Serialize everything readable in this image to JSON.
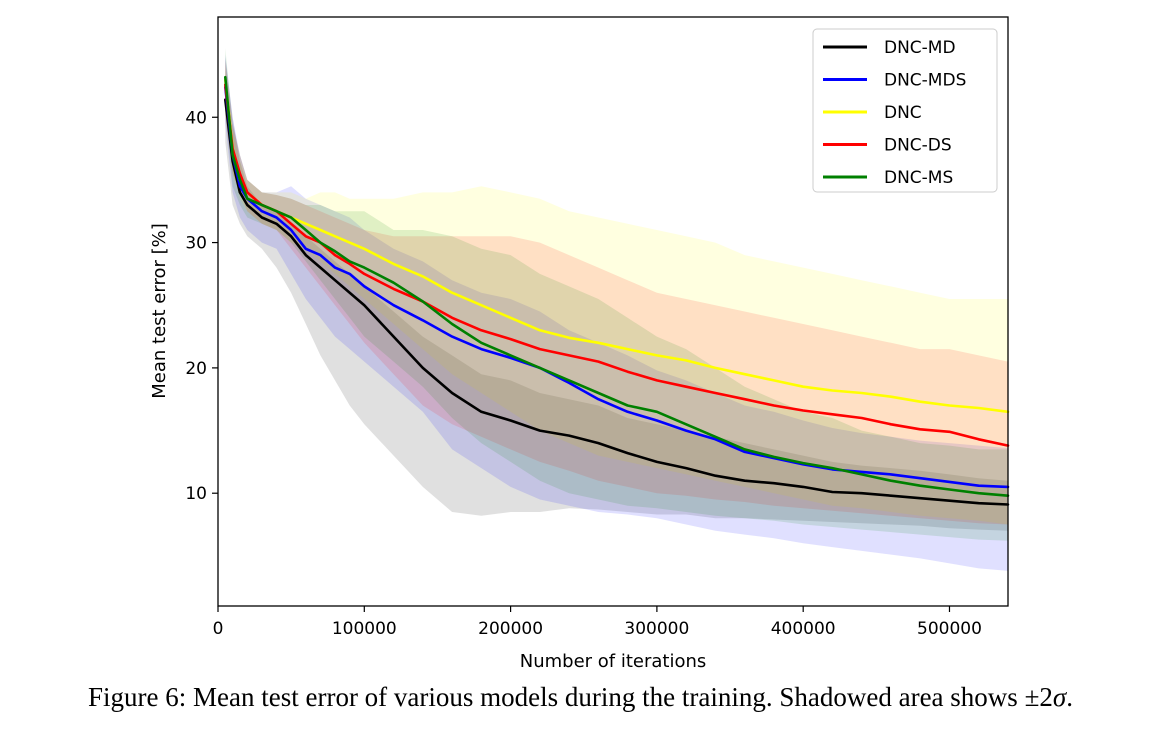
{
  "chart_data": {
    "type": "line",
    "title": "",
    "xlabel": "Number of iterations",
    "ylabel": "Mean test error [%]",
    "xlim": [
      0,
      540000
    ],
    "ylim": [
      1,
      48
    ],
    "xticks": [
      0,
      100000,
      200000,
      300000,
      400000,
      500000
    ],
    "xtick_labels": [
      "0",
      "100000",
      "200000",
      "300000",
      "400000",
      "500000"
    ],
    "yticks": [
      10,
      20,
      30,
      40
    ],
    "ytick_labels": [
      "10",
      "20",
      "30",
      "40"
    ],
    "grid": false,
    "legend_position": "top-right",
    "x": [
      5000,
      10000,
      15000,
      20000,
      30000,
      40000,
      50000,
      60000,
      70000,
      80000,
      90000,
      100000,
      120000,
      140000,
      160000,
      180000,
      200000,
      220000,
      240000,
      260000,
      280000,
      300000,
      320000,
      340000,
      360000,
      380000,
      400000,
      420000,
      440000,
      460000,
      480000,
      500000,
      520000,
      540000
    ],
    "series": [
      {
        "name": "DNC-MD",
        "color": "#000000",
        "values": [
          41.4,
          36.5,
          34.0,
          33.0,
          32.0,
          31.5,
          30.5,
          29.0,
          28.0,
          27.0,
          26.0,
          25.0,
          22.5,
          20.0,
          18.0,
          16.5,
          15.8,
          15.0,
          14.6,
          14.0,
          13.2,
          12.5,
          12.0,
          11.4,
          11.0,
          10.8,
          10.5,
          10.1,
          10.0,
          9.8,
          9.6,
          9.4,
          9.2,
          9.1
        ],
        "upper": [
          44.8,
          40.0,
          36.5,
          34.5,
          33.0,
          32.5,
          31.5,
          30.5,
          29.5,
          28.5,
          27.5,
          26.5,
          24.5,
          22.5,
          21.0,
          19.5,
          19.0,
          18.0,
          17.5,
          17.0,
          16.0,
          15.5,
          15.0,
          14.5,
          14.0,
          13.5,
          13.0,
          12.5,
          12.2,
          12.0,
          11.8,
          11.5,
          11.2,
          11.0
        ],
        "lower": [
          38.0,
          33.0,
          31.5,
          30.5,
          29.5,
          28.0,
          26.0,
          23.5,
          21.0,
          19.0,
          17.0,
          15.5,
          13.0,
          10.5,
          8.5,
          8.2,
          8.5,
          8.5,
          8.8,
          8.7,
          8.5,
          8.3,
          8.3,
          8.0,
          8.0,
          7.9,
          7.8,
          7.7,
          7.6,
          7.5,
          7.4,
          7.2,
          7.1,
          7.0
        ]
      },
      {
        "name": "DNC-MDS",
        "color": "#0000ff",
        "values": [
          42.4,
          37.0,
          34.5,
          33.5,
          32.5,
          32.0,
          31.0,
          29.5,
          29.0,
          28.0,
          27.5,
          26.5,
          25.0,
          23.8,
          22.5,
          21.5,
          20.8,
          20.0,
          18.8,
          17.5,
          16.5,
          15.8,
          15.0,
          14.3,
          13.3,
          12.8,
          12.3,
          11.9,
          11.7,
          11.5,
          11.2,
          10.9,
          10.6,
          10.5
        ],
        "upper": [
          45.0,
          40.0,
          37.0,
          35.0,
          34.0,
          34.0,
          34.5,
          33.5,
          33.0,
          32.5,
          32.0,
          31.0,
          29.5,
          28.5,
          27.0,
          26.0,
          25.5,
          24.5,
          23.0,
          22.0,
          21.0,
          19.8,
          19.0,
          18.0,
          17.0,
          16.5,
          15.8,
          15.2,
          14.8,
          14.5,
          14.2,
          14.0,
          13.8,
          13.6
        ],
        "lower": [
          39.5,
          34.0,
          32.0,
          31.0,
          30.0,
          29.5,
          27.5,
          25.5,
          24.0,
          22.5,
          21.5,
          20.5,
          18.5,
          16.5,
          13.5,
          12.0,
          10.5,
          9.5,
          9.0,
          8.5,
          8.3,
          8.0,
          7.5,
          7.0,
          6.7,
          6.4,
          6.0,
          5.7,
          5.4,
          5.1,
          4.8,
          4.4,
          4.0,
          3.8
        ]
      },
      {
        "name": "DNC",
        "color": "#ffff00",
        "values": [
          43.0,
          37.5,
          35.0,
          34.0,
          33.0,
          32.5,
          32.0,
          31.5,
          31.0,
          30.5,
          30.0,
          29.5,
          28.3,
          27.3,
          26.0,
          25.0,
          24.0,
          23.0,
          22.4,
          22.0,
          21.5,
          21.0,
          20.6,
          20.0,
          19.5,
          19.0,
          18.5,
          18.2,
          18.0,
          17.7,
          17.3,
          17.0,
          16.8,
          16.5
        ],
        "upper": [
          44.0,
          39.0,
          36.5,
          35.0,
          34.0,
          34.0,
          34.0,
          33.5,
          34.0,
          34.0,
          33.5,
          33.5,
          33.5,
          34.0,
          34.0,
          34.5,
          34.0,
          33.5,
          32.5,
          32.0,
          31.5,
          31.0,
          30.5,
          30.0,
          29.0,
          28.5,
          28.0,
          27.5,
          27.0,
          26.5,
          26.0,
          25.5,
          25.5,
          25.5
        ],
        "lower": [
          40.5,
          35.5,
          33.5,
          32.5,
          31.5,
          31.0,
          30.0,
          29.5,
          28.5,
          27.5,
          26.5,
          25.5,
          23.5,
          21.5,
          19.5,
          18.0,
          16.5,
          15.0,
          14.0,
          13.0,
          12.5,
          12.0,
          11.5,
          11.0,
          10.5,
          10.0,
          9.5,
          9.0,
          8.8,
          8.5,
          8.2,
          8.0,
          7.8,
          7.5
        ]
      },
      {
        "name": "DNC-DS",
        "color": "#ff0000",
        "values": [
          42.6,
          37.5,
          35.5,
          34.0,
          33.0,
          32.5,
          31.5,
          30.5,
          30.0,
          29.0,
          28.3,
          27.5,
          26.3,
          25.3,
          24.0,
          23.0,
          22.3,
          21.5,
          21.0,
          20.5,
          19.7,
          19.0,
          18.5,
          18.0,
          17.5,
          17.0,
          16.6,
          16.3,
          16.0,
          15.5,
          15.1,
          14.9,
          14.3,
          13.8
        ],
        "upper": [
          44.5,
          39.5,
          37.0,
          35.0,
          34.0,
          33.8,
          33.5,
          33.0,
          32.5,
          32.0,
          31.5,
          31.0,
          30.5,
          30.5,
          30.5,
          30.5,
          30.5,
          30.0,
          29.0,
          28.0,
          27.0,
          26.0,
          25.5,
          25.0,
          24.5,
          24.0,
          23.5,
          23.0,
          22.5,
          22.0,
          21.5,
          21.5,
          21.0,
          20.5
        ],
        "lower": [
          40.0,
          35.5,
          34.0,
          32.5,
          31.5,
          31.0,
          29.5,
          28.0,
          26.5,
          25.0,
          23.5,
          22.0,
          19.5,
          17.0,
          15.5,
          14.5,
          13.5,
          12.5,
          11.8,
          11.0,
          10.5,
          10.0,
          9.8,
          9.5,
          9.3,
          9.0,
          8.8,
          8.6,
          8.4,
          8.2,
          8.0,
          7.8,
          7.6,
          7.5
        ]
      },
      {
        "name": "DNC-MS",
        "color": "#008000",
        "values": [
          43.2,
          37.0,
          35.0,
          33.5,
          33.0,
          32.5,
          32.0,
          31.0,
          30.0,
          29.3,
          28.5,
          28.0,
          26.8,
          25.3,
          23.5,
          22.0,
          21.0,
          20.0,
          19.0,
          18.0,
          17.0,
          16.5,
          15.5,
          14.5,
          13.5,
          12.9,
          12.4,
          12.0,
          11.5,
          11.0,
          10.6,
          10.3,
          10.0,
          9.8
        ],
        "upper": [
          45.5,
          39.5,
          37.0,
          35.0,
          34.0,
          33.8,
          33.5,
          33.0,
          33.0,
          32.5,
          32.5,
          32.5,
          31.0,
          31.0,
          30.5,
          29.5,
          29.0,
          27.5,
          26.5,
          25.5,
          24.0,
          22.5,
          21.5,
          20.0,
          18.5,
          17.5,
          16.5,
          16.0,
          15.0,
          14.5,
          14.0,
          13.8,
          13.5,
          13.5
        ],
        "lower": [
          40.5,
          34.5,
          33.0,
          32.0,
          31.5,
          31.0,
          30.0,
          28.5,
          27.0,
          25.5,
          24.0,
          22.5,
          20.5,
          18.5,
          16.0,
          14.0,
          12.5,
          11.0,
          10.0,
          9.5,
          9.0,
          8.8,
          8.5,
          8.2,
          8.0,
          7.8,
          7.5,
          7.3,
          7.1,
          6.9,
          6.7,
          6.5,
          6.3,
          6.2
        ]
      }
    ]
  },
  "caption": {
    "lead": "Figure 6: Mean test error of various models during the training. Shadowed area shows ",
    "pm": "±2",
    "sigma": "σ",
    "end": "."
  }
}
